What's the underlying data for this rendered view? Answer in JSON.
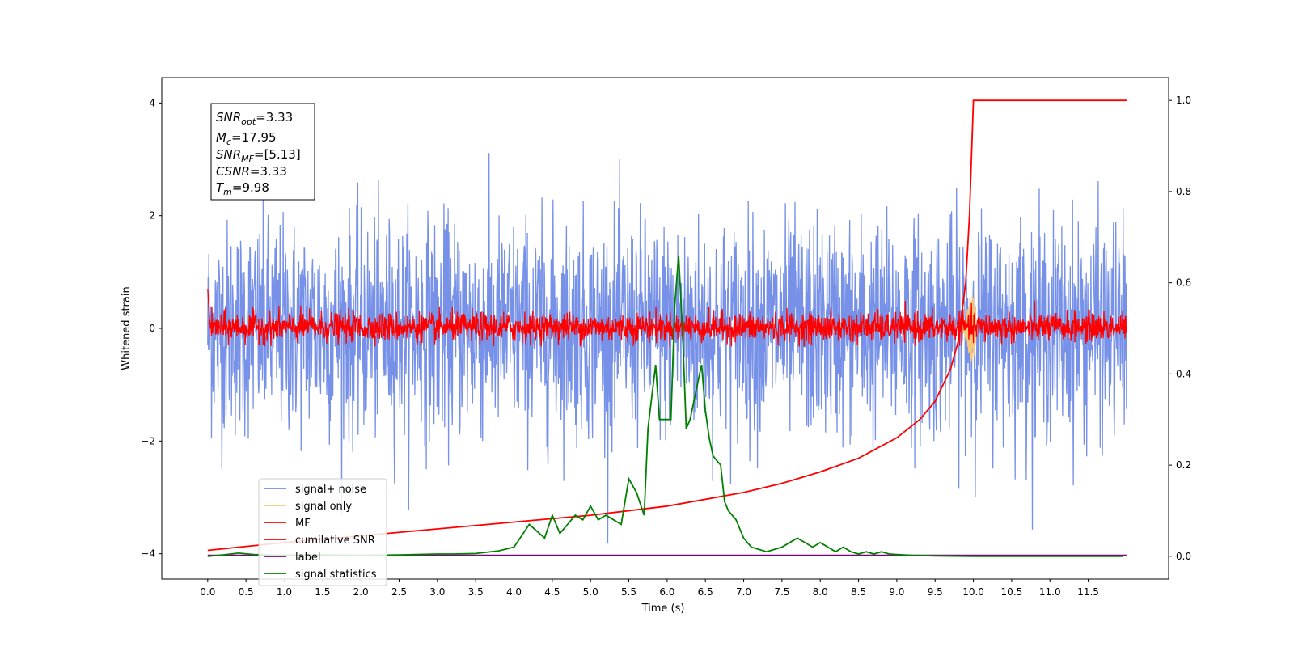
{
  "chart_data": {
    "type": "line",
    "xlabel": "Time (s)",
    "ylabel": "Whitened strain",
    "xlim": [
      -0.6,
      12.55
    ],
    "ylim": [
      -4.45,
      4.45
    ],
    "y2lim": [
      -0.05,
      1.05
    ],
    "xticks": [
      "0.0",
      "0.5",
      "1.0",
      "1.5",
      "2.0",
      "2.5",
      "3.0",
      "3.5",
      "4.0",
      "4.5",
      "5.0",
      "5.5",
      "6.0",
      "6.5",
      "7.0",
      "7.5",
      "8.0",
      "8.5",
      "9.0",
      "9.5",
      "10.0",
      "10.5",
      "11.0",
      "11.5"
    ],
    "yticks": [
      "−4",
      "−2",
      "0",
      "2",
      "4"
    ],
    "y2ticks": [
      "0.0",
      "0.2",
      "0.4",
      "0.6",
      "0.8",
      "1.0"
    ],
    "grid": false,
    "legend_position": "lower-left",
    "colors": {
      "signal_noise": "#6f8be6",
      "signal_only": "#f6c97a",
      "mf": "#ff0000",
      "cumulative_snr": "#ff0000",
      "label": "#800080",
      "signal_statistics": "#008000"
    },
    "annotation": {
      "snr_opt": {
        "main": "SNR",
        "sub": "opt",
        "value": "=3.33"
      },
      "mc": {
        "main": "M",
        "sub": "c",
        "value": "=17.95"
      },
      "snr_mf": {
        "main": "SNR",
        "sub": "MF",
        "value": "=[5.13]"
      },
      "csnr": {
        "main": "CSNR",
        "sub": "",
        "value": "=3.33"
      },
      "tm": {
        "main": "T",
        "sub": "m",
        "value": "=9.98"
      }
    },
    "series": [
      {
        "name": "signal+ noise",
        "axis": "left",
        "style": "noise",
        "x_range": [
          0.0,
          12.0
        ],
        "envelope": 2.3
      },
      {
        "name": "signal only",
        "axis": "left",
        "style": "chirp",
        "merger_time": 9.98,
        "peak": 0.6
      },
      {
        "name": "MF",
        "axis": "left",
        "style": "noise",
        "x_range": [
          0.0,
          12.0
        ],
        "envelope": 0.4
      },
      {
        "name": "cumilative SNR",
        "axis": "right",
        "x": [
          0.0,
          1.0,
          2.0,
          3.0,
          4.0,
          5.0,
          6.0,
          7.0,
          7.5,
          8.0,
          8.5,
          9.0,
          9.3,
          9.5,
          9.7,
          9.8,
          9.9,
          9.95,
          10.0,
          11.0,
          12.0
        ],
        "values": [
          0.013,
          0.03,
          0.045,
          0.06,
          0.075,
          0.09,
          0.11,
          0.14,
          0.16,
          0.185,
          0.215,
          0.26,
          0.3,
          0.34,
          0.41,
          0.47,
          0.6,
          0.75,
          1.0,
          1.0,
          1.0
        ]
      },
      {
        "name": "label",
        "axis": "right",
        "x": [
          0.0,
          12.0
        ],
        "values": [
          0.002,
          0.002
        ]
      },
      {
        "name": "signal statistics",
        "axis": "right",
        "x": [
          0.0,
          0.2,
          0.4,
          0.6,
          0.8,
          1.0,
          1.5,
          2.0,
          2.5,
          3.0,
          3.2,
          3.5,
          3.8,
          4.0,
          4.1,
          4.2,
          4.3,
          4.4,
          4.5,
          4.6,
          4.7,
          4.8,
          4.9,
          5.0,
          5.1,
          5.2,
          5.3,
          5.4,
          5.5,
          5.6,
          5.7,
          5.75,
          5.8,
          5.85,
          5.9,
          6.0,
          6.05,
          6.1,
          6.15,
          6.2,
          6.25,
          6.3,
          6.4,
          6.45,
          6.5,
          6.55,
          6.6,
          6.7,
          6.75,
          6.8,
          6.9,
          7.0,
          7.1,
          7.3,
          7.5,
          7.7,
          7.8,
          7.9,
          8.0,
          8.1,
          8.2,
          8.3,
          8.4,
          8.5,
          8.6,
          8.7,
          8.8,
          8.9,
          9.0,
          9.2,
          9.5,
          10.0,
          11.0,
          11.95
        ],
        "values": [
          0.0,
          0.003,
          0.007,
          0.004,
          0.003,
          0.002,
          0.003,
          0.002,
          0.003,
          0.005,
          0.005,
          0.006,
          0.012,
          0.02,
          0.045,
          0.07,
          0.055,
          0.04,
          0.09,
          0.05,
          0.07,
          0.09,
          0.08,
          0.11,
          0.08,
          0.09,
          0.08,
          0.07,
          0.17,
          0.14,
          0.09,
          0.28,
          0.35,
          0.42,
          0.3,
          0.3,
          0.3,
          0.55,
          0.66,
          0.5,
          0.28,
          0.3,
          0.38,
          0.42,
          0.32,
          0.26,
          0.22,
          0.2,
          0.12,
          0.1,
          0.08,
          0.04,
          0.02,
          0.01,
          0.02,
          0.04,
          0.03,
          0.02,
          0.03,
          0.02,
          0.01,
          0.02,
          0.01,
          0.005,
          0.01,
          0.005,
          0.01,
          0.005,
          0.004,
          0.002,
          0.001,
          0.0,
          0.0,
          0.0
        ]
      }
    ]
  }
}
